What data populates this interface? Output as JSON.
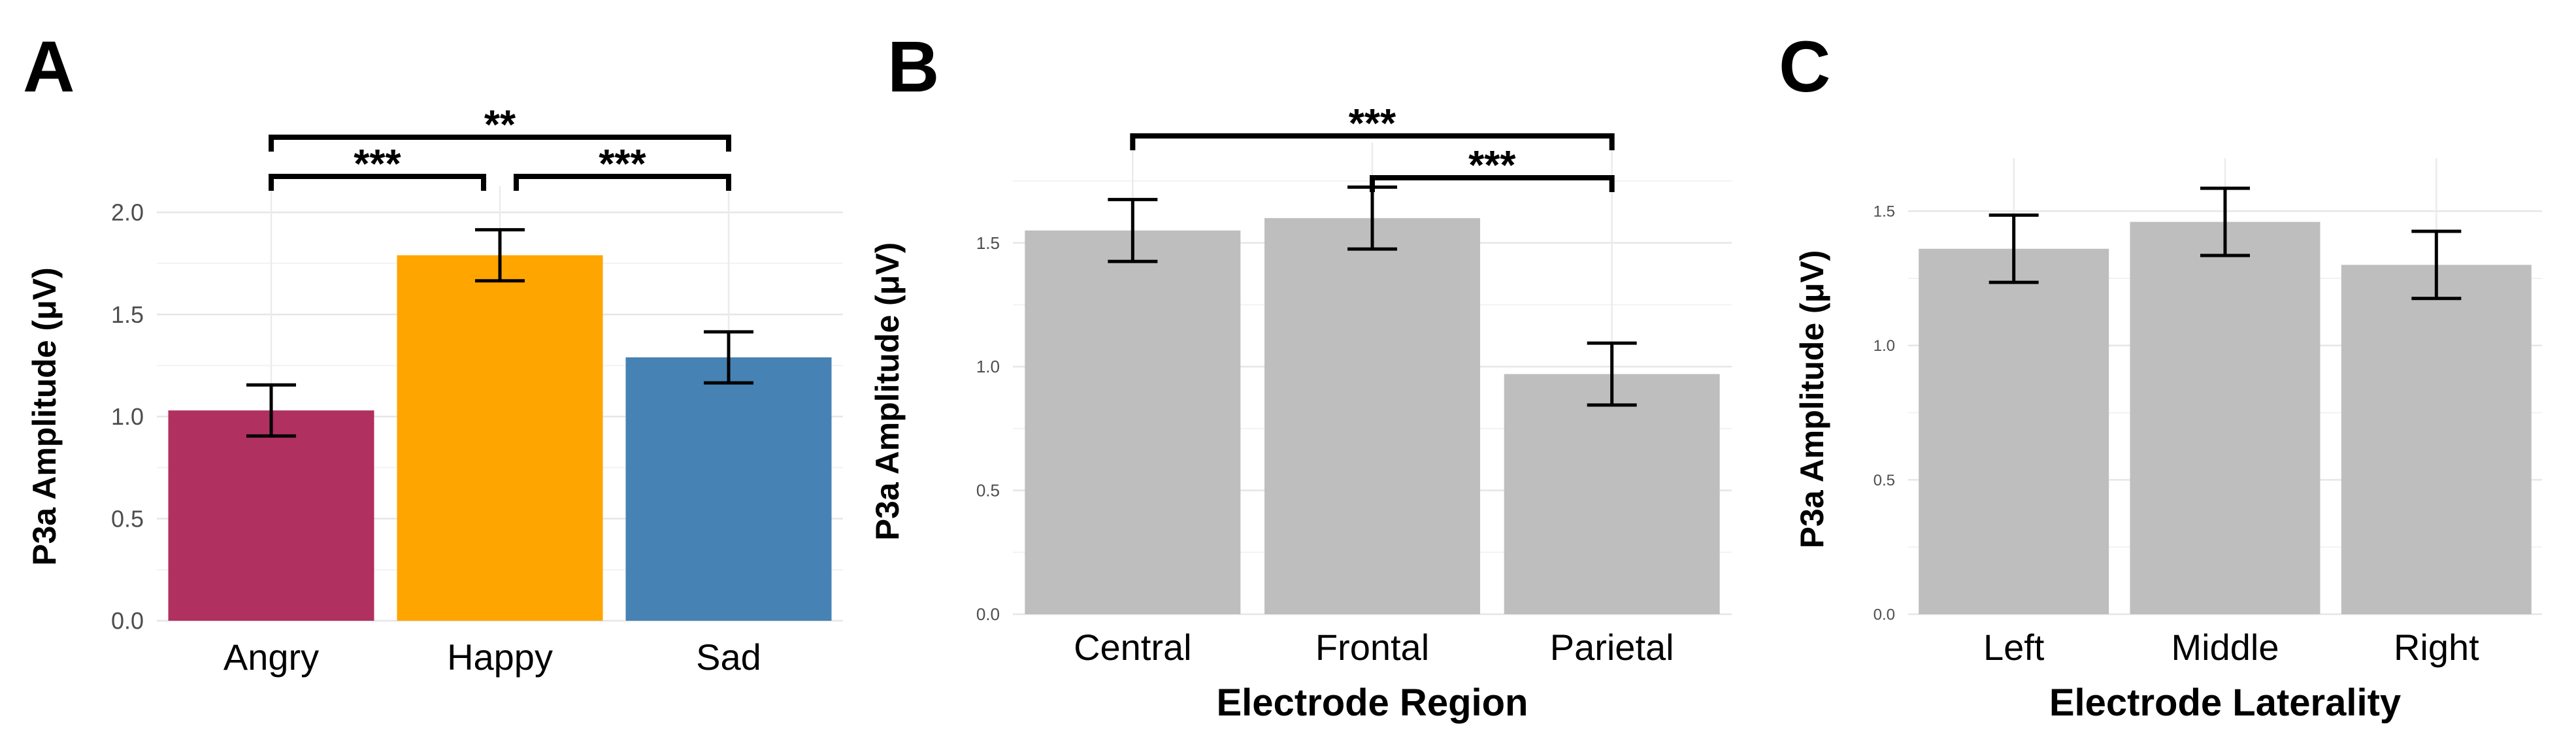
{
  "figure": {
    "panels": [
      "A",
      "B",
      "C"
    ]
  },
  "chart_data": [
    {
      "panel": "A",
      "type": "bar",
      "categories": [
        "Angry",
        "Happy",
        "Sad"
      ],
      "values": [
        1.03,
        1.79,
        1.29
      ],
      "errors": [
        0.125,
        0.125,
        0.125
      ],
      "colors": [
        "#B03060",
        "#FFA500",
        "#4682B4"
      ],
      "ylabel": "P3a Amplitude (μV)",
      "xlabel": "",
      "ylim": [
        0,
        2.0
      ],
      "yticks": [
        "0.0",
        "0.5",
        "1.0",
        "1.5",
        "2.0"
      ],
      "grid": true,
      "significance": [
        {
          "from": 0,
          "to": 2,
          "label": "**"
        },
        {
          "from": 0,
          "to": 1,
          "label": "***"
        },
        {
          "from": 1,
          "to": 2,
          "label": "***"
        }
      ]
    },
    {
      "panel": "B",
      "type": "bar",
      "categories": [
        "Central",
        "Frontal",
        "Parietal"
      ],
      "values": [
        1.55,
        1.6,
        0.97
      ],
      "errors": [
        0.125,
        0.125,
        0.125
      ],
      "colors": [
        "#BEBEBE",
        "#BEBEBE",
        "#BEBEBE"
      ],
      "ylabel": "P3a Amplitude (μV)",
      "xlabel": "Electrode Region",
      "ylim": [
        0,
        1.8
      ],
      "yticks": [
        "0.0",
        "0.5",
        "1.0",
        "1.5"
      ],
      "grid": true,
      "significance": [
        {
          "from": 0,
          "to": 2,
          "label": "***"
        },
        {
          "from": 1,
          "to": 2,
          "label": "***"
        }
      ]
    },
    {
      "panel": "C",
      "type": "bar",
      "categories": [
        "Left",
        "Middle",
        "Right"
      ],
      "values": [
        1.36,
        1.46,
        1.3
      ],
      "errors": [
        0.125,
        0.125,
        0.125
      ],
      "colors": [
        "#BEBEBE",
        "#BEBEBE",
        "#BEBEBE"
      ],
      "ylabel": "P3a Amplitude (μV)",
      "xlabel": "Electrode Laterality",
      "ylim": [
        0,
        1.6
      ],
      "yticks": [
        "0.0",
        "0.5",
        "1.0",
        "1.5"
      ],
      "grid": true,
      "significance": []
    }
  ]
}
